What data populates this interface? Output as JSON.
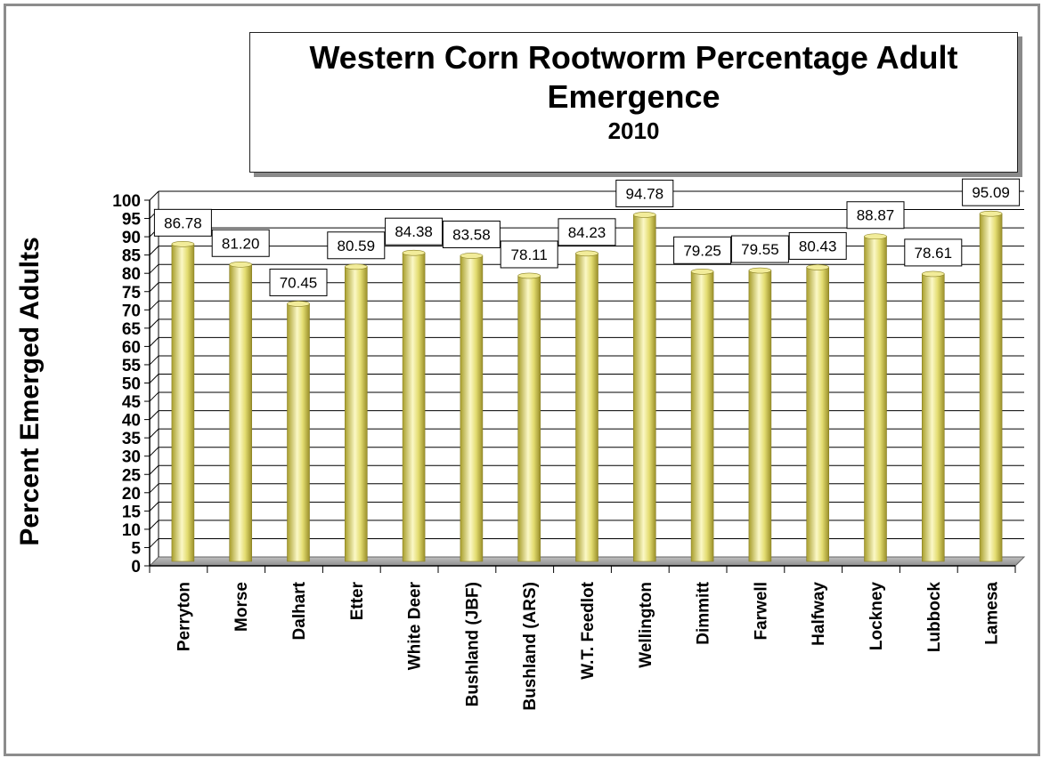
{
  "chart_data": {
    "type": "bar",
    "title": "Western Corn Rootworm Percentage Adult Emergence",
    "subtitle": "2010",
    "xlabel": "",
    "ylabel": "Percent Emerged Adults",
    "ylim": [
      0,
      100
    ],
    "ytick_step": 5,
    "grid": true,
    "legend": "none",
    "categories": [
      "Perryton",
      "Morse",
      "Dalhart",
      "Etter",
      "White Deer",
      "Bushland (JBF)",
      "Bushland (ARS)",
      "W.T. Feedlot",
      "Wellington",
      "Dimmitt",
      "Farwell",
      "Halfway",
      "Lockney",
      "Lubbock",
      "Lamesa"
    ],
    "values": [
      86.78,
      81.2,
      70.45,
      80.59,
      84.38,
      83.58,
      78.11,
      84.23,
      94.78,
      79.25,
      79.55,
      80.43,
      88.87,
      78.61,
      95.09
    ],
    "data_labels": [
      "86.78",
      "81.20",
      "70.45",
      "80.59",
      "84.38",
      "83.58",
      "78.11",
      "84.23",
      "94.78",
      "79.25",
      "79.55",
      "80.43",
      "88.87",
      "78.61",
      "95.09"
    ],
    "bar_color": "#e8e27a"
  }
}
